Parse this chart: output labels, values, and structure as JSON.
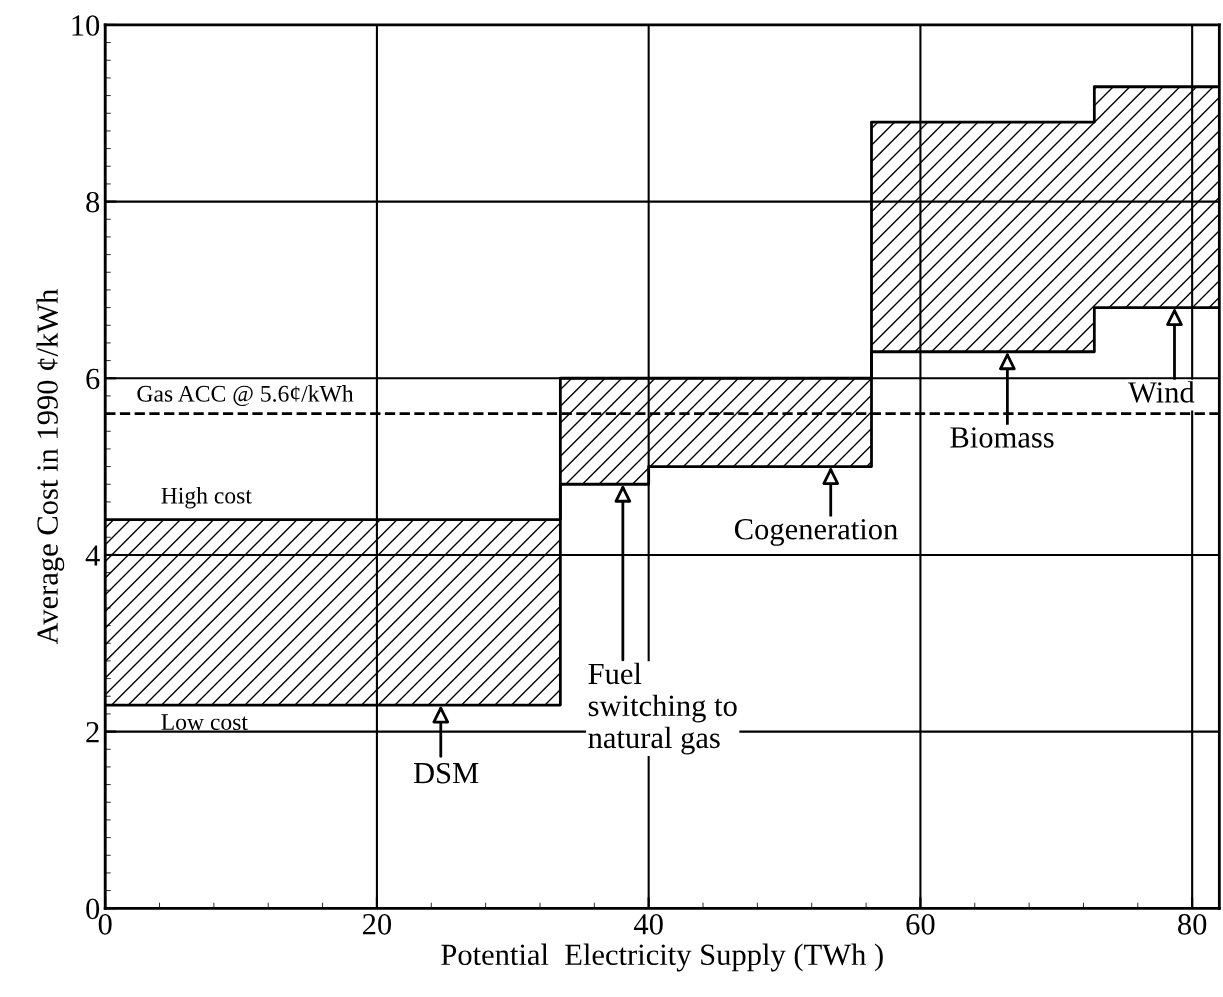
{
  "chart_data": {
    "type": "step",
    "xlabel": "Potential  Electricity Supply (TWh )",
    "ylabel": "Average Cost in 1990 ¢/kWh",
    "x": [
      0,
      33.5,
      40,
      56.4,
      72.8,
      82
    ],
    "series": [
      {
        "name": "Low cost",
        "color": "#000000",
        "values": [
          2.3,
          4.8,
          5.0,
          6.3,
          6.8,
          6.8
        ]
      },
      {
        "name": "High cost",
        "color": "#000000",
        "values": [
          4.4,
          6.0,
          6.0,
          8.9,
          9.3,
          9.3
        ],
        "lower": [
          2.3,
          4.8,
          5.0,
          6.3,
          6.8,
          6.8
        ],
        "upper": [
          4.4,
          6.0,
          6.0,
          8.9,
          9.3,
          9.3
        ]
      }
    ],
    "xlim": [
      0,
      82
    ],
    "ylim": [
      0,
      10
    ],
    "xticks": [
      0,
      20,
      40,
      60,
      80
    ],
    "yticks": [
      0,
      2,
      4,
      6,
      8,
      10
    ],
    "grid": true,
    "line_style": "solid",
    "marker": "none",
    "ref_lines": [
      {
        "axis": "y",
        "value": 5.6,
        "label": "Gas ACC @ 5.6¢/kWh",
        "line_style": "dashed",
        "color": "#000000"
      }
    ],
    "annotations": [
      {
        "text": "DSM",
        "x": 24.7,
        "y": 2.3
      },
      {
        "text": "Fuel\nswitching to\nnatural gas",
        "x": 38.1,
        "y": 4.8
      },
      {
        "text": "Cogeneration",
        "x": 53.4,
        "y": 5.0
      },
      {
        "text": "Biomass",
        "x": 66.4,
        "y": 6.3
      },
      {
        "text": "Wind",
        "x": 78.7,
        "y": 6.8
      }
    ]
  }
}
